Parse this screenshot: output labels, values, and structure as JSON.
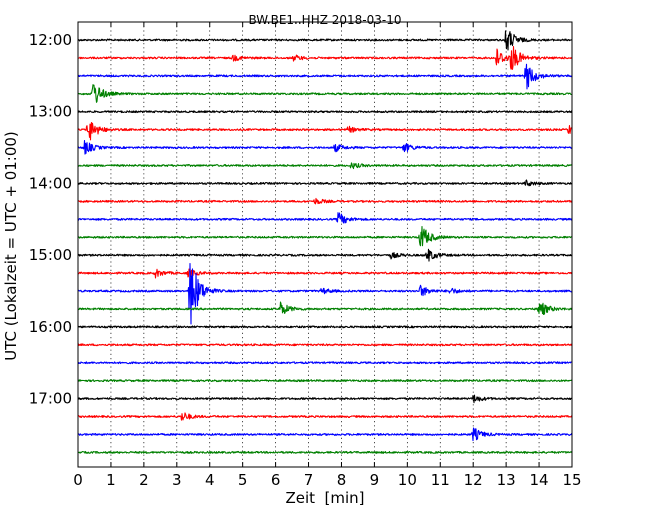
{
  "chart_data": {
    "type": "line",
    "title": "BW.BE1..HHZ 2018-03-10",
    "xlabel": "Zeit  [min]",
    "ylabel": "UTC (Lokalzeit = UTC + 01:00)",
    "xlim": [
      0,
      15
    ],
    "x_ticks": [
      0,
      1,
      2,
      3,
      4,
      5,
      6,
      7,
      8,
      9,
      10,
      11,
      12,
      13,
      14,
      15
    ],
    "y_tick_labels": [
      "12:00",
      "13:00",
      "14:00",
      "15:00",
      "16:00",
      "17:00"
    ],
    "row_interval_min": 15,
    "grid": "vertical dotted at each minute",
    "colors": [
      "#000000",
      "#ff0000",
      "#0000ff",
      "#008000"
    ],
    "series": [
      {
        "start": "12:00",
        "color": "#000000",
        "events": [
          {
            "x": 13.0,
            "amp": 14
          }
        ]
      },
      {
        "start": "12:15",
        "color": "#ff0000",
        "events": [
          {
            "x": 12.7,
            "amp": 10
          },
          {
            "x": 13.15,
            "amp": 14
          },
          {
            "x": 6.55,
            "amp": 3
          },
          {
            "x": 4.7,
            "amp": 3
          }
        ]
      },
      {
        "start": "12:30",
        "color": "#0000ff",
        "events": [
          {
            "x": 13.6,
            "amp": 15
          }
        ]
      },
      {
        "start": "12:45",
        "color": "#008000",
        "events": [
          {
            "x": 0.45,
            "amp": 15
          }
        ]
      },
      {
        "start": "13:00",
        "color": "#000000",
        "events": []
      },
      {
        "start": "13:15",
        "color": "#ff0000",
        "events": [
          {
            "x": 0.3,
            "amp": 14
          },
          {
            "x": 14.9,
            "amp": 5
          },
          {
            "x": 8.2,
            "amp": 3
          }
        ]
      },
      {
        "start": "13:30",
        "color": "#0000ff",
        "events": [
          {
            "x": 0.2,
            "amp": 7
          },
          {
            "x": 7.8,
            "amp": 4
          },
          {
            "x": 9.9,
            "amp": 5
          }
        ]
      },
      {
        "start": "13:45",
        "color": "#008000",
        "events": [
          {
            "x": 8.3,
            "amp": 3
          }
        ]
      },
      {
        "start": "14:00",
        "color": "#000000",
        "events": [
          {
            "x": 13.6,
            "amp": 3
          }
        ]
      },
      {
        "start": "14:15",
        "color": "#ff0000",
        "events": [
          {
            "x": 7.2,
            "amp": 3
          }
        ]
      },
      {
        "start": "14:30",
        "color": "#0000ff",
        "events": [
          {
            "x": 7.9,
            "amp": 7
          }
        ]
      },
      {
        "start": "14:45",
        "color": "#008000",
        "events": [
          {
            "x": 10.4,
            "amp": 14
          }
        ]
      },
      {
        "start": "15:00",
        "color": "#000000",
        "events": [
          {
            "x": 10.6,
            "amp": 7
          },
          {
            "x": 9.5,
            "amp": 3
          }
        ]
      },
      {
        "start": "15:15",
        "color": "#ff0000",
        "events": [
          {
            "x": 2.35,
            "amp": 4
          },
          {
            "x": 3.35,
            "amp": 4
          }
        ]
      },
      {
        "start": "15:30",
        "color": "#0000ff",
        "events": [
          {
            "x": 3.4,
            "amp": 40
          },
          {
            "x": 10.4,
            "amp": 6
          },
          {
            "x": 7.4,
            "amp": 3
          },
          {
            "x": 11.3,
            "amp": 3
          }
        ]
      },
      {
        "start": "15:45",
        "color": "#008000",
        "events": [
          {
            "x": 6.15,
            "amp": 7
          },
          {
            "x": 14.0,
            "amp": 9
          }
        ]
      },
      {
        "start": "16:00",
        "color": "#000000",
        "events": []
      },
      {
        "start": "16:15",
        "color": "#ff0000",
        "events": []
      },
      {
        "start": "16:30",
        "color": "#0000ff",
        "events": []
      },
      {
        "start": "16:45",
        "color": "#008000",
        "events": []
      },
      {
        "start": "17:00",
        "color": "#000000",
        "events": [
          {
            "x": 12.0,
            "amp": 4
          }
        ]
      },
      {
        "start": "17:15",
        "color": "#ff0000",
        "events": [
          {
            "x": 3.15,
            "amp": 5
          }
        ]
      },
      {
        "start": "17:30",
        "color": "#0000ff",
        "events": [
          {
            "x": 12.0,
            "amp": 7
          }
        ]
      },
      {
        "start": "17:45",
        "color": "#008000",
        "events": []
      }
    ]
  }
}
